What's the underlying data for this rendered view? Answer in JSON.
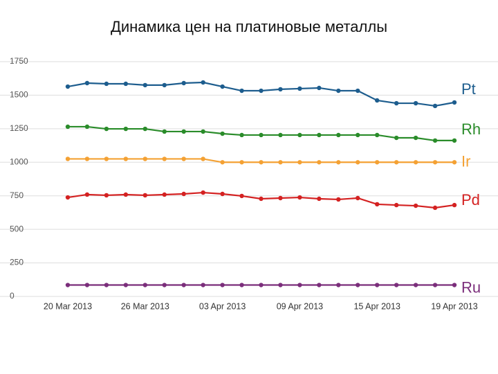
{
  "chart_data": {
    "type": "line",
    "title": "Динамика цен на платиновые металлы",
    "categories": [
      "20 Mar 2013",
      null,
      null,
      null,
      "26 Mar 2013",
      null,
      null,
      null,
      "03 Apr 2013",
      null,
      null,
      null,
      "09 Apr 2013",
      null,
      null,
      null,
      "15 Apr 2013",
      null,
      null,
      null,
      "19 Apr 2013"
    ],
    "series": [
      {
        "name": "Pt",
        "color": "#1d5d8e",
        "values": [
          1564,
          1590,
          1585,
          1585,
          1575,
          1575,
          1590,
          1595,
          1564,
          1533,
          1533,
          1544,
          1549,
          1554,
          1533,
          1533,
          1461,
          1440,
          1440,
          1420,
          1446
        ]
      },
      {
        "name": "Rh",
        "color": "#2a8c2a",
        "values": [
          1265,
          1265,
          1249,
          1249,
          1249,
          1229,
          1229,
          1229,
          1213,
          1203,
          1203,
          1203,
          1203,
          1203,
          1203,
          1203,
          1203,
          1182,
          1182,
          1162,
          1162
        ]
      },
      {
        "name": "Ir",
        "color": "#f4a133",
        "values": [
          1025,
          1025,
          1025,
          1025,
          1025,
          1025,
          1025,
          1025,
          1000,
          1000,
          1000,
          1000,
          1000,
          1000,
          1000,
          1000,
          1000,
          1000,
          1000,
          1000,
          1000
        ]
      },
      {
        "name": "Pd",
        "color": "#d42121",
        "values": [
          738,
          759,
          754,
          759,
          754,
          759,
          764,
          774,
          764,
          749,
          728,
          733,
          738,
          728,
          723,
          733,
          687,
          681,
          676,
          661,
          681
        ]
      },
      {
        "name": "Ru",
        "color": "#7b2e7b",
        "values": [
          85,
          85,
          85,
          85,
          85,
          85,
          85,
          85,
          85,
          85,
          85,
          85,
          85,
          85,
          85,
          85,
          85,
          85,
          85,
          85,
          85
        ]
      }
    ],
    "ylim": [
      0,
      1750
    ],
    "yticks": [
      0,
      250,
      500,
      750,
      1000,
      1250,
      1500,
      1750
    ],
    "grid": true
  }
}
